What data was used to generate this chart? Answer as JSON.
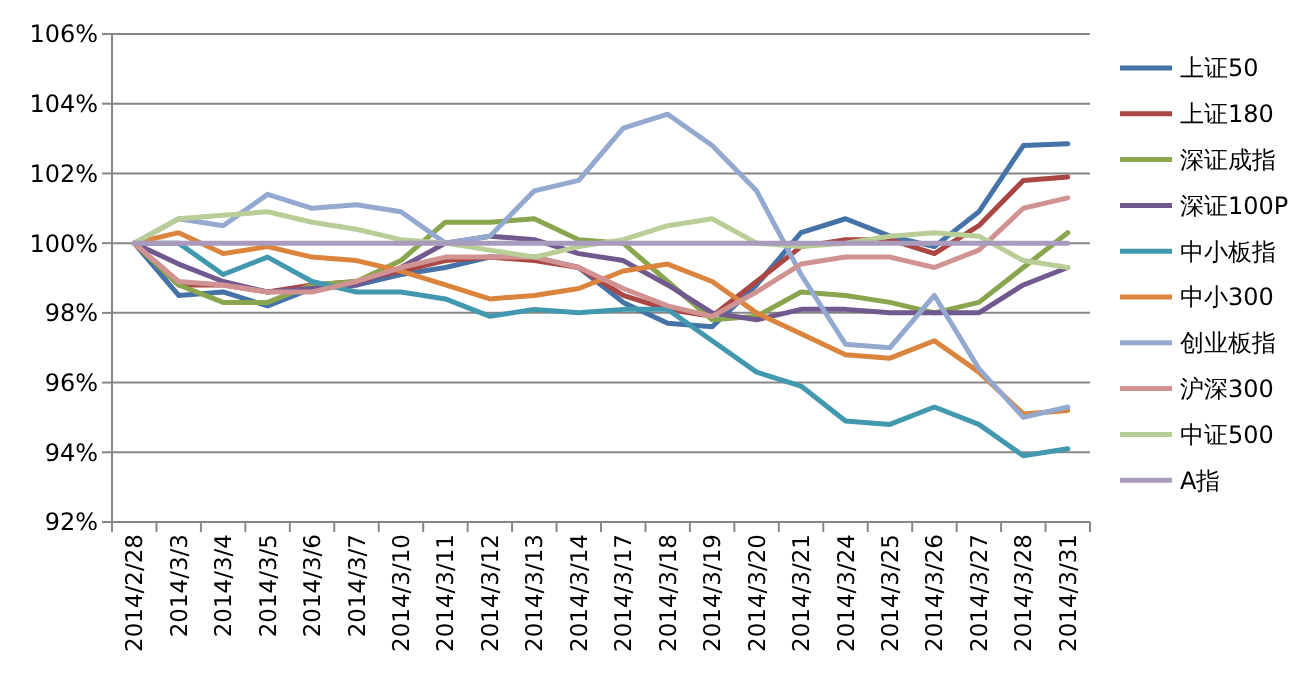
{
  "chart_data": {
    "type": "line",
    "categories": [
      "2014/2/28",
      "2014/3/3",
      "2014/3/4",
      "2014/3/5",
      "2014/3/6",
      "2014/3/7",
      "2014/3/10",
      "2014/3/11",
      "2014/3/12",
      "2014/3/13",
      "2014/3/14",
      "2014/3/17",
      "2014/3/18",
      "2014/3/19",
      "2014/3/20",
      "2014/3/21",
      "2014/3/24",
      "2014/3/25",
      "2014/3/26",
      "2014/3/27",
      "2014/3/28",
      "2014/3/31"
    ],
    "series": [
      {
        "name": "上证50",
        "color": "#4572a7",
        "values": [
          100,
          98.5,
          98.6,
          98.2,
          98.7,
          98.8,
          99.1,
          99.3,
          99.6,
          99.6,
          99.3,
          98.3,
          97.7,
          97.6,
          98.8,
          100.3,
          100.7,
          100.2,
          99.9,
          100.9,
          102.8,
          102.85
        ]
      },
      {
        "name": "上证180",
        "color": "#aa4643",
        "values": [
          100,
          98.8,
          98.8,
          98.6,
          98.8,
          98.9,
          99.2,
          99.5,
          99.6,
          99.5,
          99.3,
          98.5,
          98.1,
          97.9,
          98.9,
          99.9,
          100.1,
          100.1,
          99.7,
          100.5,
          101.8,
          101.9
        ]
      },
      {
        "name": "深证成指",
        "color": "#89a54e",
        "values": [
          100,
          98.8,
          98.3,
          98.3,
          98.8,
          98.9,
          99.5,
          100.6,
          100.6,
          100.7,
          100.1,
          100.0,
          98.9,
          97.8,
          97.9,
          98.6,
          98.5,
          98.3,
          98.0,
          98.3,
          99.3,
          100.3
        ]
      },
      {
        "name": "深证100P",
        "color": "#71588f",
        "values": [
          100,
          99.4,
          98.9,
          98.6,
          98.7,
          98.8,
          99.3,
          100.0,
          100.2,
          100.1,
          99.7,
          99.5,
          98.8,
          98.0,
          97.8,
          98.1,
          98.1,
          98.0,
          98.0,
          98.0,
          98.8,
          99.3
        ]
      },
      {
        "name": "中小板指",
        "color": "#4198af",
        "values": [
          100,
          100.0,
          99.1,
          99.6,
          98.9,
          98.6,
          98.6,
          98.4,
          97.9,
          98.1,
          98.0,
          98.1,
          98.1,
          97.2,
          96.3,
          95.9,
          94.9,
          94.8,
          95.3,
          94.8,
          93.9,
          94.1
        ]
      },
      {
        "name": "中小300",
        "color": "#db843d",
        "values": [
          100,
          100.3,
          99.7,
          99.9,
          99.6,
          99.5,
          99.2,
          98.8,
          98.4,
          98.5,
          98.7,
          99.2,
          99.4,
          98.9,
          98.0,
          97.4,
          96.8,
          96.7,
          97.2,
          96.3,
          95.1,
          95.2
        ]
      },
      {
        "name": "创业板指",
        "color": "#93a9cf",
        "values": [
          100,
          100.7,
          100.5,
          101.4,
          101.0,
          101.1,
          100.9,
          100.0,
          100.2,
          101.5,
          101.8,
          103.3,
          103.7,
          102.8,
          101.5,
          99.1,
          97.1,
          97.0,
          98.5,
          96.4,
          95.0,
          95.3
        ]
      },
      {
        "name": "沪深300",
        "color": "#d19392",
        "values": [
          100,
          98.9,
          98.8,
          98.6,
          98.6,
          98.9,
          99.3,
          99.6,
          99.6,
          99.6,
          99.3,
          98.7,
          98.2,
          97.9,
          98.6,
          99.4,
          99.6,
          99.6,
          99.3,
          99.8,
          101.0,
          101.3
        ]
      },
      {
        "name": "中证500",
        "color": "#b9cd96",
        "values": [
          100,
          100.7,
          100.8,
          100.9,
          100.6,
          100.4,
          100.1,
          100.0,
          99.8,
          99.6,
          99.9,
          100.1,
          100.5,
          100.7,
          100.0,
          99.9,
          100.0,
          100.2,
          100.3,
          100.2,
          99.5,
          99.3
        ]
      },
      {
        "name": "A指",
        "color": "#a99bbd",
        "values": [
          100,
          100,
          100,
          100,
          100,
          100,
          100,
          100,
          100,
          100,
          100,
          100,
          100,
          100,
          100,
          100,
          100,
          100,
          100,
          100,
          100,
          100
        ]
      }
    ],
    "ylim": [
      92,
      106
    ],
    "yticks": [
      {
        "value": 92,
        "label": "92%"
      },
      {
        "value": 94,
        "label": "94%"
      },
      {
        "value": 96,
        "label": "96%"
      },
      {
        "value": 98,
        "label": "98%"
      },
      {
        "value": 100,
        "label": "100%"
      },
      {
        "value": 102,
        "label": "102%"
      },
      {
        "value": 104,
        "label": "104%"
      },
      {
        "value": 106,
        "label": "106%"
      }
    ],
    "grid": "y",
    "legend": "right",
    "marker": "none",
    "line_style": "solid"
  }
}
